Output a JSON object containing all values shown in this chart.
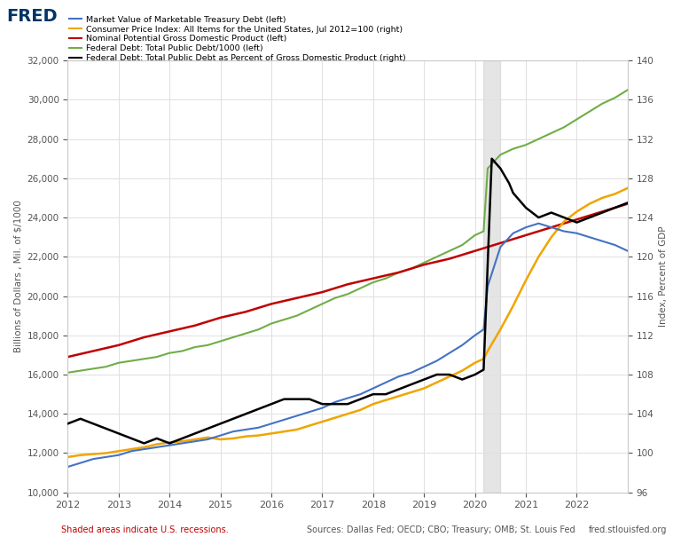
{
  "title": "",
  "ylabel_left": "Billions of Dollars , Mil. of $/1000",
  "ylabel_right": "Index, Percent of GDP",
  "ylim_left": [
    10000,
    32000
  ],
  "ylim_right": [
    96,
    140
  ],
  "xlim": [
    2012.0,
    2023.0
  ],
  "yticks_left": [
    10000,
    12000,
    14000,
    16000,
    18000,
    20000,
    22000,
    24000,
    26000,
    28000,
    30000,
    32000
  ],
  "yticks_right": [
    96,
    100,
    104,
    108,
    112,
    116,
    120,
    124,
    128,
    132,
    136,
    140
  ],
  "recession_start": 2020.17,
  "recession_end": 2020.5,
  "background_color": "#ffffff",
  "grid_color": "#e0e0e0",
  "fred_logo_color": "#003366",
  "legend_items": [
    {
      "label": "Market Value of Marketable Treasury Debt (left)",
      "color": "#4472c4",
      "lw": 1.5
    },
    {
      "label": "Consumer Price Index: All Items for the United States, Jul 2012=100 (right)",
      "color": "#f0a500",
      "lw": 1.5
    },
    {
      "label": "Nominal Potential Gross Domestic Product (left)",
      "color": "#c00000",
      "lw": 1.5
    },
    {
      "label": "Federal Debt: Total Public Debt/1000 (left)",
      "color": "#70ad47",
      "lw": 1.5
    },
    {
      "label": "Federal Debt: Total Public Debt as Percent of Gross Domestic Product (right)",
      "color": "#000000",
      "lw": 1.5
    }
  ],
  "blue_line": {
    "x": [
      2012.0,
      2012.25,
      2012.5,
      2012.75,
      2013.0,
      2013.25,
      2013.5,
      2013.75,
      2014.0,
      2014.25,
      2014.5,
      2014.75,
      2015.0,
      2015.25,
      2015.5,
      2015.75,
      2016.0,
      2016.25,
      2016.5,
      2016.75,
      2017.0,
      2017.25,
      2017.5,
      2017.75,
      2018.0,
      2018.25,
      2018.5,
      2018.75,
      2019.0,
      2019.25,
      2019.5,
      2019.75,
      2020.0,
      2020.17,
      2020.25,
      2020.5,
      2020.75,
      2021.0,
      2021.25,
      2021.5,
      2021.75,
      2022.0,
      2022.25,
      2022.5,
      2022.75,
      2023.0
    ],
    "y": [
      11300,
      11500,
      11700,
      11800,
      11900,
      12100,
      12200,
      12300,
      12400,
      12500,
      12600,
      12700,
      12900,
      13100,
      13200,
      13300,
      13500,
      13700,
      13900,
      14100,
      14300,
      14600,
      14800,
      15000,
      15300,
      15600,
      15900,
      16100,
      16400,
      16700,
      17100,
      17500,
      18000,
      18300,
      20500,
      22500,
      23200,
      23500,
      23700,
      23500,
      23300,
      23200,
      23000,
      22800,
      22600,
      22300
    ]
  },
  "orange_line": {
    "x": [
      2012.0,
      2012.25,
      2012.5,
      2012.75,
      2013.0,
      2013.25,
      2013.5,
      2013.75,
      2014.0,
      2014.25,
      2014.5,
      2014.75,
      2015.0,
      2015.25,
      2015.5,
      2015.75,
      2016.0,
      2016.25,
      2016.5,
      2016.75,
      2017.0,
      2017.25,
      2017.5,
      2017.75,
      2018.0,
      2018.25,
      2018.5,
      2018.75,
      2019.0,
      2019.25,
      2019.5,
      2019.75,
      2020.0,
      2020.17,
      2020.25,
      2020.5,
      2020.75,
      2021.0,
      2021.25,
      2021.5,
      2021.75,
      2022.0,
      2022.25,
      2022.5,
      2022.75,
      2023.0
    ],
    "y": [
      11800,
      11900,
      11950,
      12000,
      12100,
      12200,
      12300,
      12450,
      12550,
      12600,
      12700,
      12800,
      12700,
      12750,
      12850,
      12900,
      13000,
      13100,
      13200,
      13400,
      13600,
      13800,
      14000,
      14200,
      14500,
      14700,
      14900,
      15100,
      15300,
      15600,
      15900,
      16200,
      16600,
      16800,
      17200,
      18300,
      19500,
      20800,
      22000,
      23000,
      23800,
      24300,
      24700,
      25000,
      25200,
      25500
    ]
  },
  "red_line": {
    "x": [
      2012.0,
      2012.5,
      2013.0,
      2013.5,
      2014.0,
      2014.5,
      2015.0,
      2015.5,
      2016.0,
      2016.5,
      2017.0,
      2017.5,
      2018.0,
      2018.5,
      2019.0,
      2019.5,
      2020.0,
      2020.5,
      2021.0,
      2021.5,
      2022.0,
      2022.5,
      2023.0
    ],
    "y": [
      16900,
      17200,
      17500,
      17900,
      18200,
      18500,
      18900,
      19200,
      19600,
      19900,
      20200,
      20600,
      20900,
      21200,
      21600,
      21900,
      22300,
      22700,
      23100,
      23500,
      23900,
      24300,
      24700
    ]
  },
  "green_line": {
    "x": [
      2012.0,
      2012.25,
      2012.5,
      2012.75,
      2013.0,
      2013.25,
      2013.5,
      2013.75,
      2014.0,
      2014.25,
      2014.5,
      2014.75,
      2015.0,
      2015.25,
      2015.5,
      2015.75,
      2016.0,
      2016.25,
      2016.5,
      2016.75,
      2017.0,
      2017.25,
      2017.5,
      2017.75,
      2018.0,
      2018.25,
      2018.5,
      2018.75,
      2019.0,
      2019.25,
      2019.5,
      2019.75,
      2020.0,
      2020.17,
      2020.25,
      2020.5,
      2020.75,
      2021.0,
      2021.25,
      2021.5,
      2021.75,
      2022.0,
      2022.25,
      2022.5,
      2022.75,
      2023.0
    ],
    "y": [
      16100,
      16200,
      16300,
      16400,
      16600,
      16700,
      16800,
      16900,
      17100,
      17200,
      17400,
      17500,
      17700,
      17900,
      18100,
      18300,
      18600,
      18800,
      19000,
      19300,
      19600,
      19900,
      20100,
      20400,
      20700,
      20900,
      21200,
      21400,
      21700,
      22000,
      22300,
      22600,
      23100,
      23300,
      26500,
      27200,
      27500,
      27700,
      28000,
      28300,
      28600,
      29000,
      29400,
      29800,
      30100,
      30500
    ]
  },
  "black_line": {
    "x": [
      2012.0,
      2012.25,
      2012.5,
      2012.75,
      2013.0,
      2013.25,
      2013.5,
      2013.75,
      2014.0,
      2014.25,
      2014.5,
      2014.75,
      2015.0,
      2015.25,
      2015.5,
      2015.75,
      2016.0,
      2016.25,
      2016.5,
      2016.75,
      2017.0,
      2017.25,
      2017.5,
      2017.75,
      2018.0,
      2018.25,
      2018.5,
      2018.75,
      2019.0,
      2019.25,
      2019.5,
      2019.75,
      2020.0,
      2020.17,
      2020.33,
      2020.5,
      2020.67,
      2020.75,
      2021.0,
      2021.25,
      2021.5,
      2021.75,
      2022.0,
      2022.25,
      2022.5,
      2022.75,
      2023.0
    ],
    "y_right": [
      103.0,
      103.5,
      103.0,
      102.5,
      102.0,
      101.5,
      101.0,
      101.5,
      101.0,
      101.5,
      102.0,
      102.5,
      103.0,
      103.5,
      104.0,
      104.5,
      105.0,
      105.5,
      105.5,
      105.5,
      105.0,
      105.0,
      105.0,
      105.5,
      106.0,
      106.0,
      106.5,
      107.0,
      107.5,
      108.0,
      108.0,
      107.5,
      108.0,
      108.5,
      130.0,
      129.0,
      127.5,
      126.5,
      125.0,
      124.0,
      124.5,
      124.0,
      123.5,
      124.0,
      124.5,
      125.0,
      125.5
    ]
  },
  "source_text": "Sources: Dallas Fed; OECD; CBO; Treasury; OMB; St. Louis Fed",
  "footer_text": "fred.stlouisfed.org",
  "shaded_text": "Shaded areas indicate U.S. recessions."
}
